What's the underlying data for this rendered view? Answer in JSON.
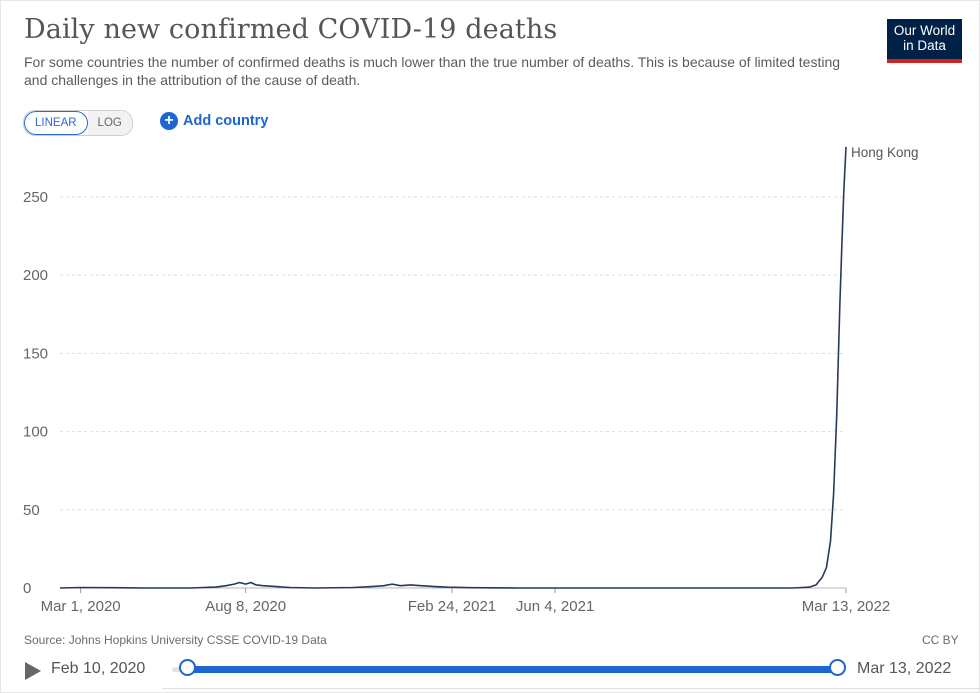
{
  "header": {
    "title": "Daily new confirmed COVID-19 deaths",
    "subtitle": "For some countries the number of confirmed deaths is much lower than the true number of deaths. This is because of limited testing and challenges in the attribution of the cause of death.",
    "logo_line1": "Our World",
    "logo_line2": "in Data"
  },
  "controls": {
    "linear_label": "LINEAR",
    "log_label": "LOG",
    "add_country_label": "Add country"
  },
  "chart_data": {
    "type": "line",
    "title": "Daily new confirmed COVID-19 deaths",
    "xlabel": "",
    "ylabel": "",
    "ylim": [
      0,
      280
    ],
    "xlim": [
      "2020-02-10",
      "2022-03-13"
    ],
    "y_ticks": [
      0,
      50,
      100,
      150,
      200,
      250
    ],
    "x_ticks": [
      {
        "date": "2020-03-01",
        "label": "Mar 1, 2020"
      },
      {
        "date": "2020-08-08",
        "label": "Aug 8, 2020"
      },
      {
        "date": "2021-02-24",
        "label": "Feb 24, 2021"
      },
      {
        "date": "2021-06-04",
        "label": "Jun 4, 2021"
      },
      {
        "date": "2022-03-13",
        "label": "Mar 13, 2022"
      }
    ],
    "grid": "horizontal",
    "series": [
      {
        "name": "Hong Kong",
        "color": "#283a59",
        "points": [
          [
            "2020-02-10",
            0
          ],
          [
            "2020-03-01",
            0.3
          ],
          [
            "2020-04-01",
            0.2
          ],
          [
            "2020-05-01",
            0
          ],
          [
            "2020-06-15",
            0
          ],
          [
            "2020-07-10",
            0.6
          ],
          [
            "2020-07-20",
            1.5
          ],
          [
            "2020-07-28",
            2.5
          ],
          [
            "2020-08-02",
            3.5
          ],
          [
            "2020-08-08",
            2.5
          ],
          [
            "2020-08-13",
            3.5
          ],
          [
            "2020-08-18",
            2
          ],
          [
            "2020-08-25",
            1.5
          ],
          [
            "2020-09-05",
            1
          ],
          [
            "2020-09-20",
            0.3
          ],
          [
            "2020-10-15",
            0
          ],
          [
            "2020-11-20",
            0.3
          ],
          [
            "2020-12-10",
            1
          ],
          [
            "2020-12-20",
            1.5
          ],
          [
            "2020-12-28",
            2.5
          ],
          [
            "2021-01-05",
            1.5
          ],
          [
            "2021-01-15",
            2
          ],
          [
            "2021-01-25",
            1.5
          ],
          [
            "2021-02-05",
            1
          ],
          [
            "2021-02-20",
            0.5
          ],
          [
            "2021-03-15",
            0.2
          ],
          [
            "2021-05-01",
            0
          ],
          [
            "2021-09-01",
            0
          ],
          [
            "2021-12-01",
            0
          ],
          [
            "2022-01-20",
            0
          ],
          [
            "2022-02-05",
            0.5
          ],
          [
            "2022-02-12",
            2
          ],
          [
            "2022-02-18",
            7
          ],
          [
            "2022-02-22",
            13
          ],
          [
            "2022-02-26",
            30
          ],
          [
            "2022-03-01",
            60
          ],
          [
            "2022-03-04",
            110
          ],
          [
            "2022-03-07",
            180
          ],
          [
            "2022-03-09",
            220
          ],
          [
            "2022-03-11",
            255
          ],
          [
            "2022-03-13",
            282
          ]
        ]
      }
    ]
  },
  "footer": {
    "source": "Source: Johns Hopkins University CSSE COVID-19 Data",
    "license": "CC BY"
  },
  "timeline": {
    "start_label": "Feb 10, 2020",
    "end_label": "Mar 13, 2022"
  }
}
